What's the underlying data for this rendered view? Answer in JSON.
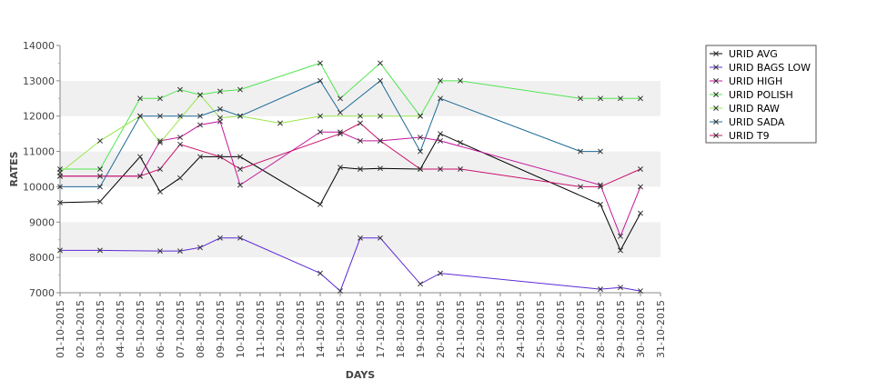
{
  "chart_data": {
    "type": "line",
    "xlabel": "DAYS",
    "ylabel": "RATES",
    "ylim": [
      7000,
      14000
    ],
    "yticks": [
      7000,
      8000,
      9000,
      10000,
      11000,
      12000,
      13000,
      14000
    ],
    "ytick_labels": [
      "7000",
      "8000",
      "9000",
      "10000",
      "11000",
      "12000",
      "13000",
      "14000"
    ],
    "categories": [
      "01-10-2015",
      "02-10-2015",
      "03-10-2015",
      "04-10-2015",
      "05-10-2015",
      "06-10-2015",
      "07-10-2015",
      "08-10-2015",
      "09-10-2015",
      "10-10-2015",
      "11-10-2015",
      "12-10-2015",
      "13-10-2015",
      "14-10-2015",
      "15-10-2015",
      "16-10-2015",
      "17-10-2015",
      "18-10-2015",
      "19-10-2015",
      "20-10-2015",
      "21-10-2015",
      "22-10-2015",
      "23-10-2015",
      "24-10-2015",
      "25-10-2015",
      "26-10-2015",
      "27-10-2015",
      "28-10-2015",
      "29-10-2015",
      "30-10-2015",
      "31-10-2015"
    ],
    "grid": "alternating horizontal bands",
    "legend_position": "right",
    "series": [
      {
        "name": "URID AVG",
        "color": "#000000",
        "points": [
          [
            1,
            9550
          ],
          [
            3,
            9580
          ],
          [
            5,
            10850
          ],
          [
            6,
            9860
          ],
          [
            7,
            10250
          ],
          [
            8,
            10850
          ],
          [
            9,
            10850
          ],
          [
            10,
            10850
          ],
          [
            14,
            9500
          ],
          [
            15,
            10550
          ],
          [
            16,
            10500
          ],
          [
            17,
            10520
          ],
          [
            19,
            10500
          ],
          [
            20,
            11500
          ],
          [
            21,
            11250
          ],
          [
            28,
            9500
          ],
          [
            29,
            8200
          ],
          [
            30,
            9250
          ]
        ]
      },
      {
        "name": "URID BAGS LOW",
        "color": "#5c2ad6",
        "points": [
          [
            1,
            8200
          ],
          [
            3,
            8200
          ],
          [
            6,
            8180
          ],
          [
            7,
            8180
          ],
          [
            8,
            8280
          ],
          [
            9,
            8550
          ],
          [
            10,
            8550
          ],
          [
            14,
            7550
          ],
          [
            15,
            7050
          ],
          [
            16,
            8550
          ],
          [
            17,
            8550
          ],
          [
            19,
            7250
          ],
          [
            20,
            7550
          ],
          [
            28,
            7100
          ],
          [
            29,
            7150
          ],
          [
            30,
            7050
          ]
        ]
      },
      {
        "name": "URID HIGH",
        "color": "#c3169a",
        "points": [
          [
            1,
            10300
          ],
          [
            3,
            10300
          ],
          [
            5,
            10300
          ],
          [
            6,
            11300
          ],
          [
            7,
            11400
          ],
          [
            8,
            11750
          ],
          [
            9,
            11850
          ],
          [
            10,
            10050
          ],
          [
            14,
            11550
          ],
          [
            15,
            11550
          ],
          [
            16,
            11300
          ],
          [
            17,
            11300
          ],
          [
            19,
            11400
          ],
          [
            20,
            11300
          ],
          [
            28,
            10050
          ],
          [
            29,
            8600
          ],
          [
            30,
            10000
          ]
        ]
      },
      {
        "name": "URID POLISH",
        "color": "#50e650",
        "points": [
          [
            1,
            10500
          ],
          [
            3,
            10500
          ],
          [
            5,
            12500
          ],
          [
            6,
            12500
          ],
          [
            7,
            12750
          ],
          [
            8,
            12600
          ],
          [
            9,
            12700
          ],
          [
            10,
            12750
          ],
          [
            14,
            13500
          ],
          [
            15,
            12500
          ],
          [
            17,
            13500
          ],
          [
            19,
            12000
          ],
          [
            20,
            13000
          ],
          [
            21,
            13000
          ],
          [
            27,
            12500
          ],
          [
            28,
            12500
          ],
          [
            29,
            12500
          ],
          [
            30,
            12500
          ]
        ]
      },
      {
        "name": "URID RAW",
        "color": "#99e64d",
        "points": [
          [
            1,
            10400
          ],
          [
            3,
            11300
          ],
          [
            5,
            12000
          ],
          [
            6,
            11250
          ],
          [
            8,
            12600
          ],
          [
            9,
            11950
          ],
          [
            10,
            12000
          ],
          [
            12,
            11800
          ],
          [
            14,
            12000
          ],
          [
            16,
            12000
          ],
          [
            17,
            12000
          ],
          [
            19,
            12000
          ]
        ]
      },
      {
        "name": "URID SADA",
        "color": "#1c6996",
        "points": [
          [
            1,
            10000
          ],
          [
            3,
            10000
          ],
          [
            5,
            12000
          ],
          [
            6,
            12000
          ],
          [
            7,
            12000
          ],
          [
            8,
            12000
          ],
          [
            9,
            12200
          ],
          [
            10,
            12000
          ],
          [
            14,
            13000
          ],
          [
            15,
            12100
          ],
          [
            17,
            13000
          ],
          [
            19,
            11000
          ],
          [
            20,
            12500
          ],
          [
            27,
            11000
          ],
          [
            28,
            11000
          ]
        ]
      },
      {
        "name": "URID T9",
        "color": "#c8106a",
        "points": [
          [
            1,
            10300
          ],
          [
            3,
            10300
          ],
          [
            5,
            10300
          ],
          [
            6,
            10500
          ],
          [
            7,
            11200
          ],
          [
            9,
            10850
          ],
          [
            10,
            10500
          ],
          [
            15,
            11500
          ],
          [
            16,
            11800
          ],
          [
            17,
            11300
          ],
          [
            19,
            10500
          ],
          [
            20,
            10500
          ],
          [
            21,
            10500
          ],
          [
            27,
            10000
          ],
          [
            28,
            10000
          ],
          [
            30,
            10500
          ]
        ]
      }
    ]
  }
}
